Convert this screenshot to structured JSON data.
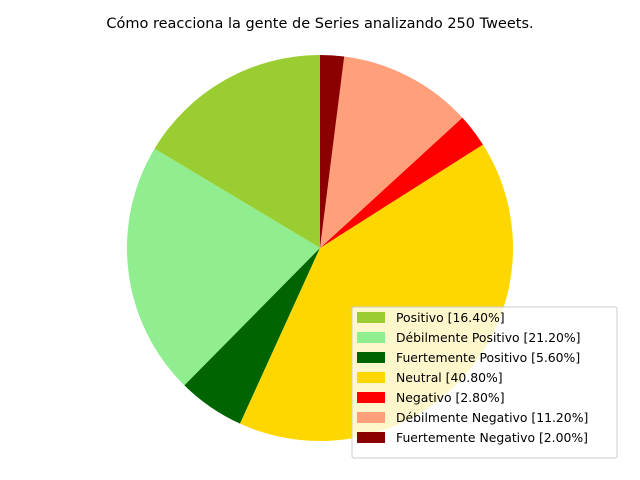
{
  "chart_data": {
    "type": "pie",
    "title": "Cómo reacciona la gente de Series analizando 250 Tweets.",
    "start_angle_deg": 90,
    "direction": "counterclockwise",
    "slices": [
      {
        "label": "Positivo [16.40%]",
        "value": 16.4,
        "color": "#9acd32"
      },
      {
        "label": "Débilmente Positivo [21.20%]",
        "value": 21.2,
        "color": "#90ee90"
      },
      {
        "label": "Fuertemente Positivo [5.60%]",
        "value": 5.6,
        "color": "#006400"
      },
      {
        "label": "Neutral [40.80%]",
        "value": 40.8,
        "color": "#ffd700"
      },
      {
        "label": "Negativo [2.80%]",
        "value": 2.8,
        "color": "#ff0000"
      },
      {
        "label": "Débilmente Negativo [11.20%]",
        "value": 11.2,
        "color": "#ffa07a"
      },
      {
        "label": "Fuertemente Negativo [2.00%]",
        "value": 2.0,
        "color": "#8b0000"
      }
    ],
    "legend_position": "lower-right"
  }
}
